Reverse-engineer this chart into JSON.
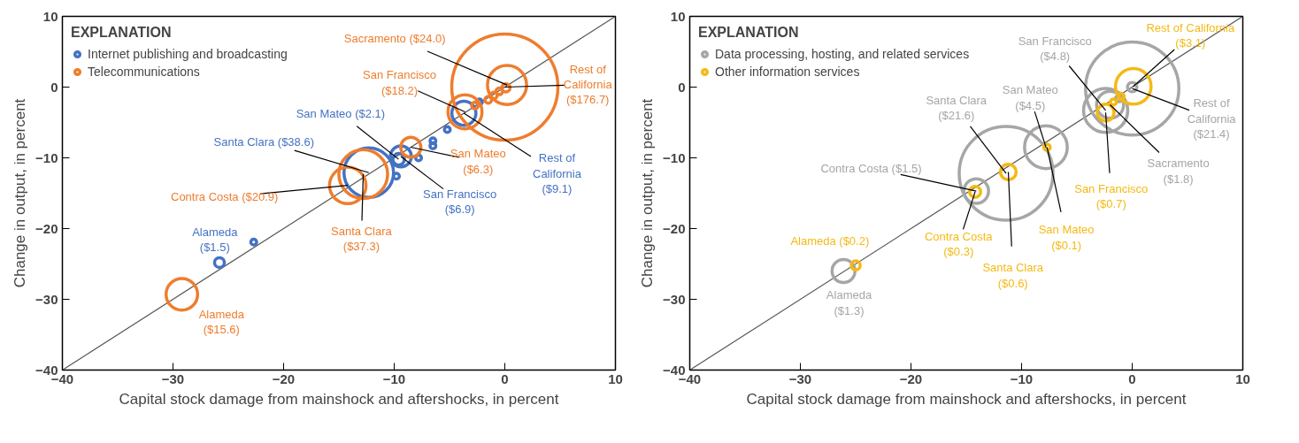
{
  "chart_data": [
    {
      "type": "bubble",
      "xlabel": "Capital stock damage from mainshock and aftershocks, in percent",
      "ylabel": "Change in output, in percent",
      "legend_title": "EXPLANATION",
      "legend": "top left",
      "xlim": [
        -40,
        10
      ],
      "ylim": [
        -40,
        10
      ],
      "xticks": [
        -40,
        -30,
        -20,
        -10,
        0,
        10
      ],
      "yticks": [
        -40,
        -30,
        -20,
        -10,
        0,
        10
      ],
      "series": [
        {
          "type": "line",
          "color": "#555555",
          "x": [
            -40,
            10
          ],
          "values": [
            -40,
            10
          ]
        },
        {
          "name": "Internet publishing and broadcasting",
          "color": "#4472c4",
          "x": [
            -25.8,
            -22.7,
            -12.3,
            -9.6,
            -9.4,
            -3.7,
            -5.2,
            -6.5,
            -6.5,
            -7.8,
            -9.8,
            -2.3
          ],
          "values": [
            -24.8,
            -21.9,
            -12.1,
            -10.2,
            -9.8,
            -3.7,
            -6.0,
            -7.6,
            -8.3,
            -10.0,
            -12.6,
            -2.1
          ],
          "sizes": [
            0.0085,
            0.003,
            0.218,
            0.0119,
            0.039,
            0.0515,
            0.003,
            0.003,
            0.003,
            0.003,
            0.003,
            0.003
          ]
        },
        {
          "name": "Telecommunications",
          "color": "#ef7d2d",
          "x": [
            -29.2,
            -14.2,
            -12.8,
            -8.5,
            -3.6,
            0.2,
            0.0,
            -2.7,
            -0.5,
            -1.0,
            -1.5,
            0.1
          ],
          "values": [
            -29.3,
            -13.9,
            -12.3,
            -8.5,
            -3.5,
            0.3,
            0.0,
            -2.6,
            -0.6,
            -1.2,
            -1.8,
            -0.1
          ],
          "sizes": [
            0.088,
            0.118,
            0.211,
            0.036,
            0.103,
            0.136,
            1.0,
            0.004,
            0.004,
            0.004,
            0.004,
            0.006
          ]
        }
      ],
      "annotations": [
        {
          "text": "Alameda\n($1.5)",
          "x": -25.8,
          "y": -24.8
        },
        {
          "text": "Santa Clara  ($38.6)",
          "x": -12.3,
          "y": -12.1
        },
        {
          "text": "San Mateo ($2.1)",
          "x": -9.6,
          "y": -10.2
        },
        {
          "text": "San Francisco\n($6.9)",
          "x": -9.4,
          "y": -9.8
        },
        {
          "text": "Rest of\nCalifornia\n($9.1)",
          "x": -3.7,
          "y": -3.7
        },
        {
          "text": "Alameda\n($15.6)",
          "x": -29.2,
          "y": -29.3
        },
        {
          "text": "Contra Costa  ($20.9)",
          "x": -14.2,
          "y": -13.9
        },
        {
          "text": "Santa Clara\n($37.3)",
          "x": -12.8,
          "y": -12.3
        },
        {
          "text": "San Mateo\n($6.3)",
          "x": -8.5,
          "y": -8.5
        },
        {
          "text": "San Francisco\n($18.2)",
          "x": -3.6,
          "y": -3.5
        },
        {
          "text": "Sacramento  ($24.0)",
          "x": 0.2,
          "y": 0.3
        },
        {
          "text": "Rest of\nCalifornia\n($176.7)",
          "x": 0.0,
          "y": 0.0
        }
      ]
    },
    {
      "type": "bubble",
      "xlabel": "Capital stock damage from mainshock and aftershocks, in percent",
      "ylabel": "Change in output, in percent",
      "legend_title": "EXPLANATION",
      "legend": "top left",
      "xlim": [
        -40,
        10
      ],
      "ylim": [
        -40,
        10
      ],
      "xticks": [
        -40,
        -30,
        -20,
        -10,
        0,
        10
      ],
      "yticks": [
        -40,
        -30,
        -20,
        -10,
        0,
        10
      ],
      "series": [
        {
          "type": "line",
          "color": "#555555",
          "x": [
            -40,
            10
          ],
          "values": [
            -40,
            10
          ]
        },
        {
          "name": "Data processing, hosting, and related services",
          "color": "#a6a6a6",
          "x": [
            -26.1,
            -14.1,
            -11.4,
            -7.8,
            -2.4,
            -2.0,
            0.0,
            0.0,
            -1.2
          ],
          "values": [
            -26.0,
            -14.7,
            -12.2,
            -8.5,
            -3.3,
            -2.5,
            -0.2,
            0.0,
            -1.6
          ],
          "sizes": [
            0.06,
            0.069,
            1.0,
            0.208,
            0.222,
            0.083,
            0.99,
            0.01,
            0.005
          ]
        },
        {
          "name": "Other information services",
          "color": "#f5b914",
          "x": [
            -25.0,
            -14.2,
            -11.2,
            -7.7,
            -2.4,
            0.1,
            -1.0,
            -1.7
          ],
          "values": [
            -25.2,
            -14.8,
            -12.0,
            -8.5,
            -3.6,
            0.1,
            -1.3,
            -2.1
          ],
          "sizes": [
            0.0093,
            0.014,
            0.028,
            0.0046,
            0.032,
            0.144,
            0.004,
            0.004
          ]
        }
      ],
      "annotations": [
        {
          "text": "Alameda\n($1.3)",
          "x": -26.1,
          "y": -26.0
        },
        {
          "text": "Contra Costa ($1.5)",
          "x": -14.1,
          "y": -14.7
        },
        {
          "text": "Santa Clara\n($21.6)",
          "x": -11.4,
          "y": -12.2
        },
        {
          "text": "San Mateo\n($4.5)",
          "x": -7.8,
          "y": -8.5
        },
        {
          "text": "San Francisco\n($4.8)",
          "x": -2.4,
          "y": -3.3
        },
        {
          "text": "Sacramento\n($1.8)",
          "x": -2.0,
          "y": -2.5
        },
        {
          "text": "Rest of\nCalifornia\n($21.4)",
          "x": 0.0,
          "y": -0.2
        },
        {
          "text": "Alameda ($0.2)",
          "x": -25.0,
          "y": -25.2
        },
        {
          "text": "Contra Costa\n($0.3)",
          "x": -14.2,
          "y": -14.8
        },
        {
          "text": "Santa Clara\n($0.6)",
          "x": -11.2,
          "y": -12.0
        },
        {
          "text": "San Mateo\n($0.1)",
          "x": -7.7,
          "y": -8.5
        },
        {
          "text": "San Francisco\n($0.7)",
          "x": -2.4,
          "y": -3.6
        },
        {
          "text": "Rest of California\n($3.1)",
          "x": 0.1,
          "y": 0.1
        }
      ]
    }
  ]
}
